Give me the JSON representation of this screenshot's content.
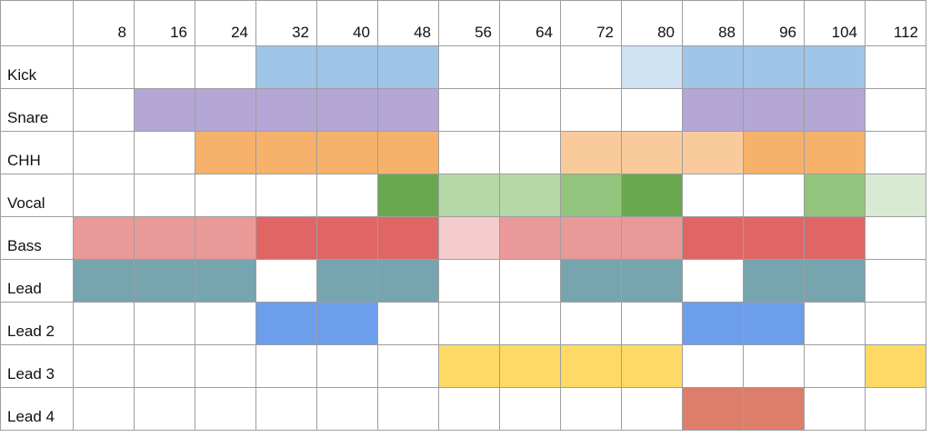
{
  "sheet": {
    "columns": [
      "8",
      "16",
      "24",
      "32",
      "40",
      "48",
      "56",
      "64",
      "72",
      "80",
      "88",
      "96",
      "104",
      "112"
    ],
    "palette": {
      "blue": "#9fc5e8",
      "blue_light": "#cfe2f3",
      "purple": "#b4a7d6",
      "orange": "#f6b26b",
      "orange_light": "#f9cb9c",
      "green_dark": "#6aa84f",
      "green": "#93c47d",
      "green_light": "#b6d7a8",
      "green_pale": "#d9ead3",
      "red_light": "#ea9999",
      "red": "#e06666",
      "red_pale": "#f4cccc",
      "teal": "#76a5af",
      "cornflower": "#6d9eeb",
      "yellow": "#ffd966",
      "coral": "#dd7e6b"
    },
    "rows": [
      {
        "label": "Kick",
        "cells": [
          null,
          null,
          null,
          "blue",
          "blue",
          "blue",
          null,
          null,
          null,
          "blue_light",
          "blue",
          "blue",
          "blue",
          null
        ]
      },
      {
        "label": "Snare",
        "cells": [
          null,
          "purple",
          "purple",
          "purple",
          "purple",
          "purple",
          null,
          null,
          null,
          null,
          "purple",
          "purple",
          "purple",
          null
        ]
      },
      {
        "label": "CHH",
        "cells": [
          null,
          null,
          "orange",
          "orange",
          "orange",
          "orange",
          null,
          null,
          "orange_light",
          "orange_light",
          "orange_light",
          "orange",
          "orange",
          null
        ]
      },
      {
        "label": "Vocal",
        "cells": [
          null,
          null,
          null,
          null,
          null,
          "green_dark",
          "green_light",
          "green_light",
          "green",
          "green_dark",
          null,
          null,
          "green",
          "green_pale"
        ]
      },
      {
        "label": "Bass",
        "cells": [
          "red_light",
          "red_light",
          "red_light",
          "red",
          "red",
          "red",
          "red_pale",
          "red_light",
          "red_light",
          "red_light",
          "red",
          "red",
          "red",
          null
        ]
      },
      {
        "label": "Lead",
        "cells": [
          "teal",
          "teal",
          "teal",
          null,
          "teal",
          "teal",
          null,
          null,
          "teal",
          "teal",
          null,
          "teal",
          "teal",
          null
        ]
      },
      {
        "label": "Lead 2",
        "cells": [
          null,
          null,
          null,
          "cornflower",
          "cornflower",
          null,
          null,
          null,
          null,
          null,
          "cornflower",
          "cornflower",
          null,
          null
        ]
      },
      {
        "label": "Lead 3",
        "cells": [
          null,
          null,
          null,
          null,
          null,
          null,
          "yellow",
          "yellow",
          "yellow",
          "yellow",
          null,
          null,
          null,
          "yellow"
        ]
      },
      {
        "label": "Lead 4",
        "cells": [
          null,
          null,
          null,
          null,
          null,
          null,
          null,
          null,
          null,
          null,
          "coral",
          "coral",
          null,
          null
        ]
      }
    ]
  }
}
